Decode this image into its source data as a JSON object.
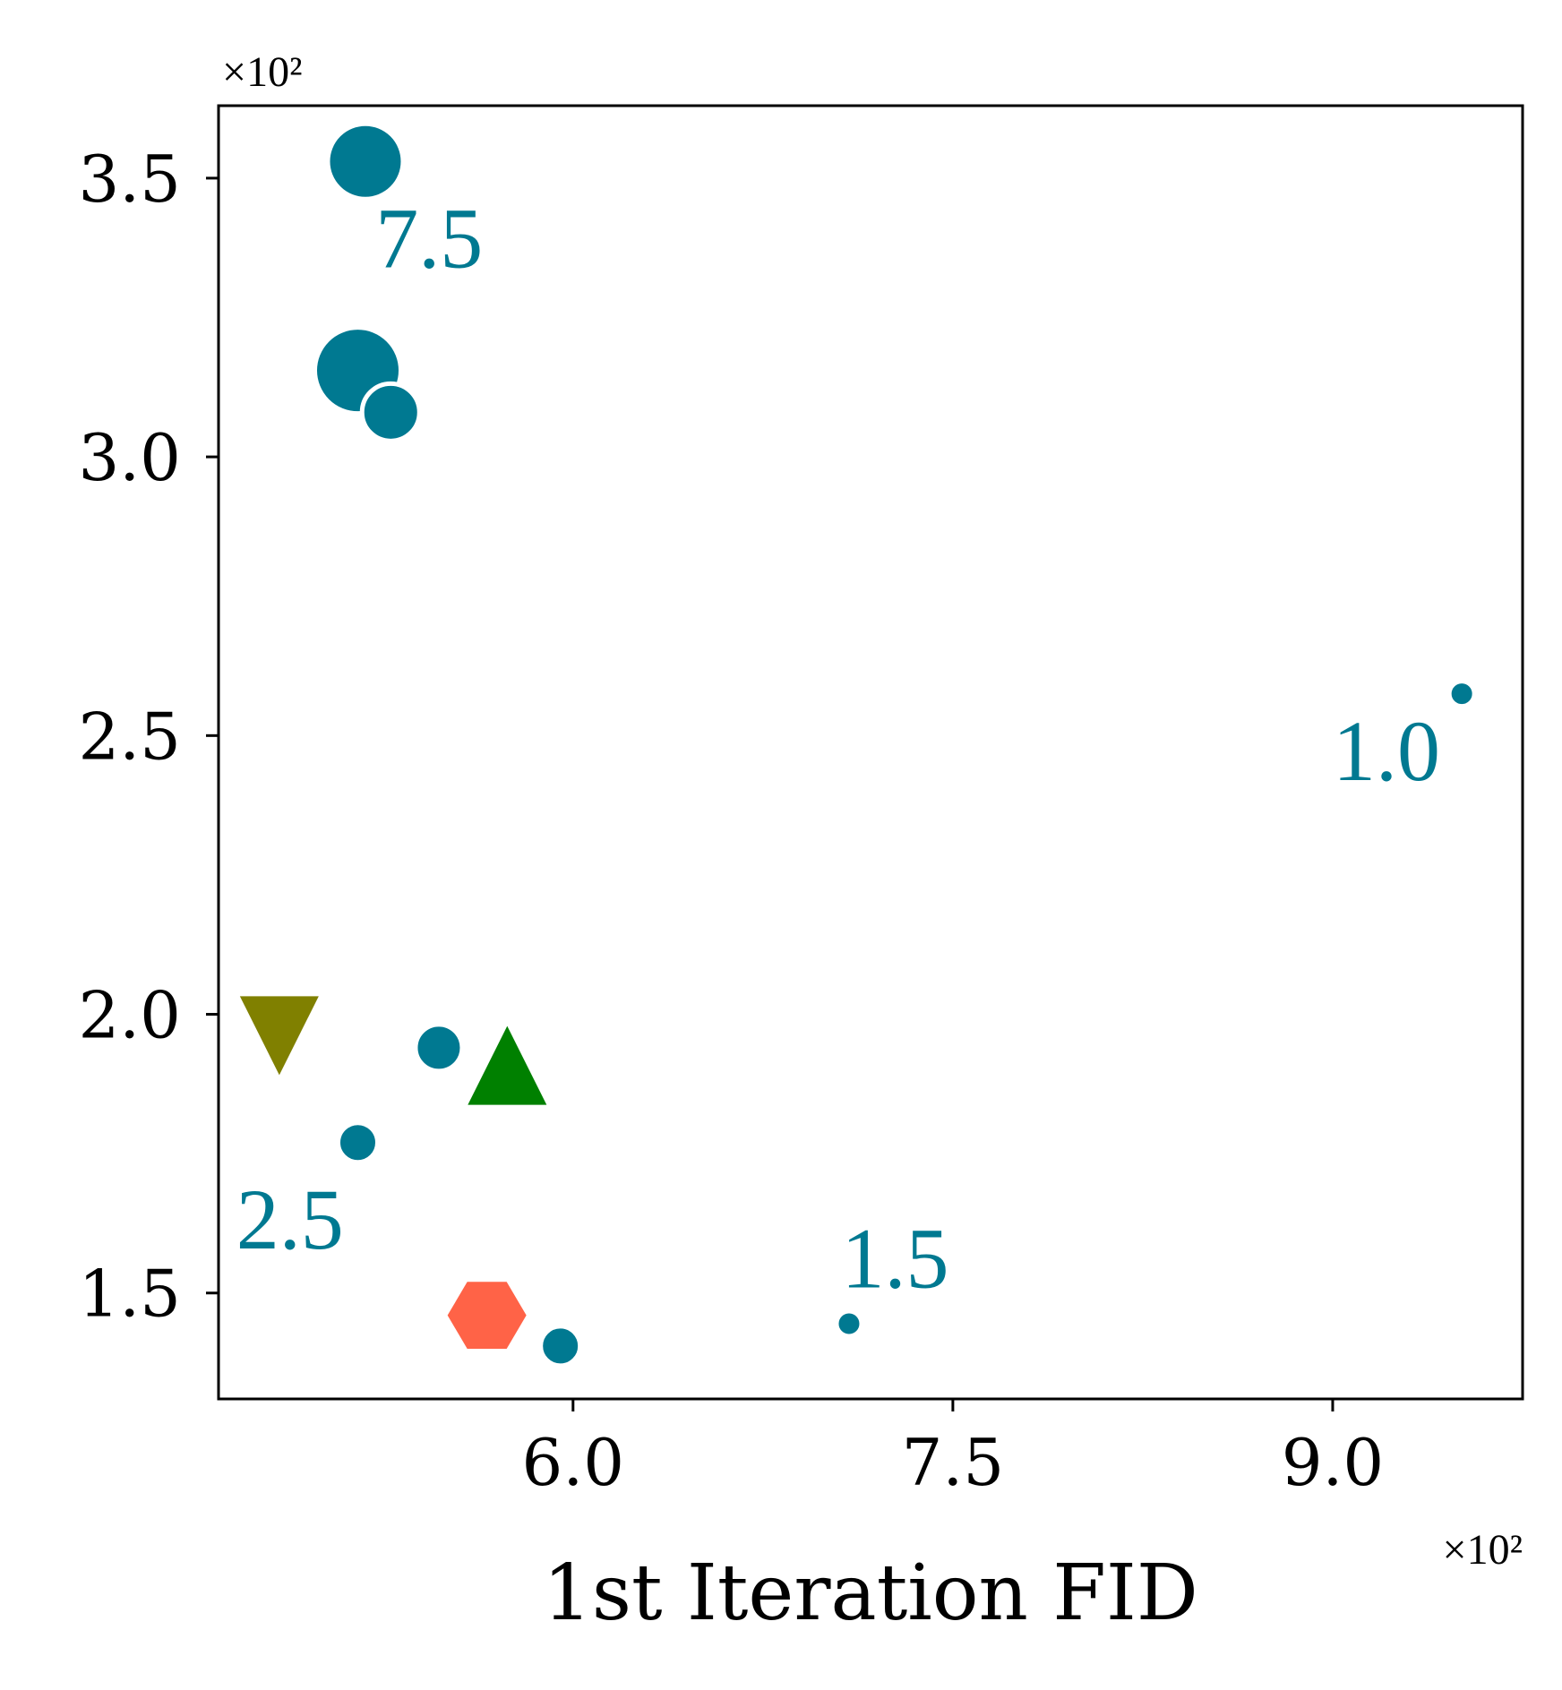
{
  "chart_data": {
    "type": "scatter",
    "xlabel": "1st Iteration FID",
    "ylabel": "",
    "x_multiplier": "×10²",
    "y_multiplier": "×10²",
    "xlim": [
      4.6,
      9.75
    ],
    "ylim": [
      1.31,
      3.63
    ],
    "x_ticks": [
      {
        "value": 6.0,
        "label": "6.0"
      },
      {
        "value": 7.5,
        "label": "7.5"
      },
      {
        "value": 9.0,
        "label": "9.0"
      }
    ],
    "y_ticks": [
      {
        "value": 1.5,
        "label": "1.5"
      },
      {
        "value": 2.0,
        "label": "2.0"
      },
      {
        "value": 2.5,
        "label": "2.5"
      },
      {
        "value": 3.0,
        "label": "3.0"
      },
      {
        "value": 3.5,
        "label": "3.5"
      }
    ],
    "grid": false,
    "colors": {
      "series": "#007991",
      "olive": "#808000",
      "green": "#008000",
      "tomato": "#FF6347"
    },
    "series": [
      {
        "marker": "circle",
        "color": "#007991",
        "points": [
          {
            "x": 5.18,
            "y": 3.53,
            "size": "large"
          },
          {
            "x": 5.15,
            "y": 3.155,
            "size": "xlarge"
          },
          {
            "x": 5.28,
            "y": 3.08,
            "size": "medium"
          },
          {
            "x": 9.51,
            "y": 2.575,
            "size": "small"
          },
          {
            "x": 5.47,
            "y": 1.94,
            "size": "medium-small"
          },
          {
            "x": 5.15,
            "y": 1.77,
            "size": "small-medium"
          },
          {
            "x": 5.95,
            "y": 1.405,
            "size": "small-medium"
          },
          {
            "x": 7.09,
            "y": 1.445,
            "size": "small"
          }
        ]
      },
      {
        "marker": "triangle-down",
        "color": "#808000",
        "points": [
          {
            "x": 4.84,
            "y": 1.965
          }
        ]
      },
      {
        "marker": "triangle-up",
        "color": "#008000",
        "points": [
          {
            "x": 5.74,
            "y": 1.905
          }
        ]
      },
      {
        "marker": "hexagon",
        "color": "#FF6347",
        "points": [
          {
            "x": 5.66,
            "y": 1.46
          }
        ]
      }
    ],
    "annotations": [
      {
        "text": "7.5",
        "x": 5.22,
        "y": 3.34,
        "color": "#007991"
      },
      {
        "text": "1.0",
        "x": 9.0,
        "y": 2.42,
        "color": "#007991"
      },
      {
        "text": "2.5",
        "x": 4.67,
        "y": 1.58,
        "color": "#007991"
      },
      {
        "text": "1.5",
        "x": 7.06,
        "y": 1.51,
        "color": "#007991"
      }
    ]
  }
}
